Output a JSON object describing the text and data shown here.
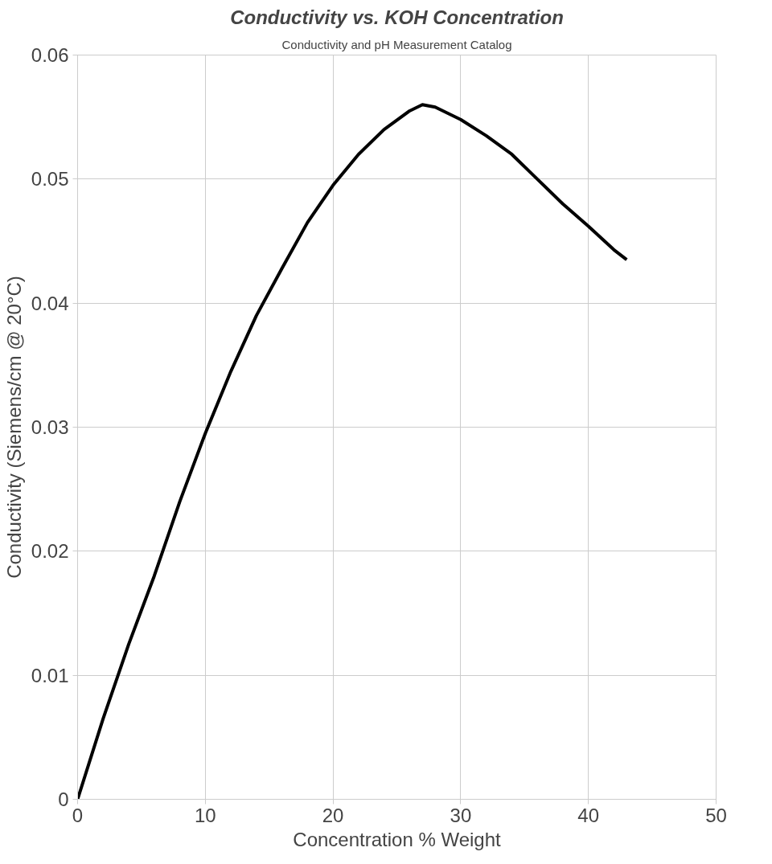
{
  "chart_data": {
    "type": "line",
    "title": "Conductivity vs. KOH Concentration",
    "subtitle": "Conductivity and pH Measurement Catalog",
    "xlabel": "Concentration % Weight",
    "ylabel": "Conductivity (Siemens/cm @ 20°C)",
    "x": [
      0,
      2,
      4,
      6,
      8,
      10,
      12,
      14,
      16,
      18,
      20,
      22,
      24,
      26,
      27,
      28,
      30,
      32,
      34,
      36,
      38,
      40,
      42,
      43
    ],
    "series": [
      {
        "color": "#000000",
        "values": [
          0,
          0.0065,
          0.0125,
          0.018,
          0.024,
          0.0295,
          0.0345,
          0.039,
          0.0428,
          0.0465,
          0.0495,
          0.052,
          0.054,
          0.0555,
          0.056,
          0.0558,
          0.0548,
          0.0535,
          0.052,
          0.05,
          0.048,
          0.0462,
          0.0443,
          0.0435
        ]
      }
    ],
    "xlim": [
      0,
      50
    ],
    "xticks": [
      0,
      10,
      20,
      30,
      40,
      50
    ],
    "ylim": [
      0,
      0.06
    ],
    "yticks": [
      0,
      0.01,
      0.02,
      0.03,
      0.04,
      0.05,
      0.06
    ],
    "grid": true,
    "marker": "none",
    "line_style": "solid"
  }
}
